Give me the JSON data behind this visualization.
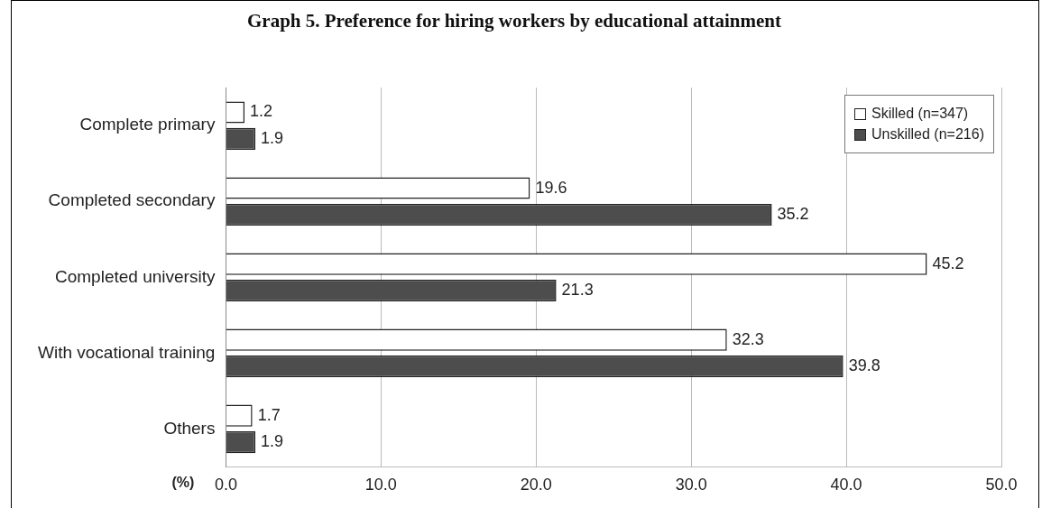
{
  "chart_data": {
    "type": "bar",
    "orientation": "horizontal",
    "title": "Graph 5. Preference for hiring workers by educational attainment",
    "xlabel": "(%)",
    "categories": [
      "Complete primary",
      "Completed secondary",
      "Completed university",
      "With vocational training",
      "Others"
    ],
    "series": [
      {
        "name": "Skilled (n=347)",
        "color": "#ffffff",
        "values": [
          1.2,
          19.6,
          45.2,
          32.3,
          1.7
        ]
      },
      {
        "name": "Unskilled (n=216)",
        "color": "#4d4d4d",
        "values": [
          1.9,
          35.2,
          21.3,
          39.8,
          1.9
        ]
      }
    ],
    "xlim": [
      0,
      50
    ],
    "xticks": [
      {
        "value": 0,
        "label": "0.0"
      },
      {
        "value": 10,
        "label": "10.0"
      },
      {
        "value": 20,
        "label": "20.0"
      },
      {
        "value": 30,
        "label": "30.0"
      },
      {
        "value": 40,
        "label": "40.0"
      },
      {
        "value": 50,
        "label": "50.0"
      }
    ],
    "grid": "x",
    "legend": "top right",
    "data_labels": true
  }
}
